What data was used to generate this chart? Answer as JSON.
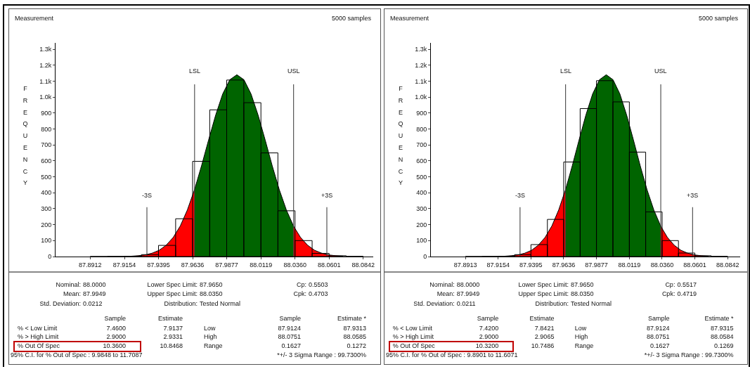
{
  "chart_data": [
    {
      "type": "histogram",
      "title": "Measurement",
      "ylabel": "FREQUENCY",
      "bins": [
        87.8912,
        87.9033,
        87.9154,
        87.9274,
        87.9395,
        87.9516,
        87.9636,
        87.9757,
        87.9877,
        87.9998,
        88.0119,
        88.0239,
        88.036,
        88.0481,
        88.0601,
        88.0722,
        88.0842
      ],
      "values": [
        0,
        1,
        2,
        12,
        70,
        237,
        597,
        920,
        1107,
        965,
        650,
        287,
        100,
        20,
        5,
        1
      ],
      "color": "#000000",
      "series": [
        {
          "type": "area",
          "color": "#ff0000",
          "x": [
            87.9199,
            87.9249,
            87.9299,
            87.9349,
            87.9399,
            87.9449,
            87.9499,
            87.9549,
            87.9599,
            87.965
          ],
          "values": [
            2,
            5,
            10,
            21,
            39,
            71,
            120,
            192,
            292,
            421
          ]
        },
        {
          "type": "area",
          "color": "#006400",
          "x": [
            87.965,
            87.9699,
            87.9749,
            87.9799,
            87.9849,
            87.9899,
            87.9949,
            87.9999,
            88.0049,
            88.0099,
            88.0149,
            88.0199,
            88.0249,
            88.0299,
            88.035
          ],
          "values": [
            421,
            569,
            731,
            887,
            1020,
            1109,
            1140,
            1109,
            1020,
            887,
            731,
            569,
            419,
            292,
            190
          ]
        },
        {
          "type": "area",
          "color": "#ff0000",
          "x": [
            88.035,
            88.0399,
            88.0449,
            88.0499,
            88.0549,
            88.0599,
            88.0649,
            88.0699
          ],
          "values": [
            190,
            120,
            71,
            39,
            21,
            10,
            5,
            2
          ]
        }
      ],
      "xlim": [
        87.8667,
        88.0913
      ],
      "xticks": [
        87.8912,
        87.9154,
        87.9395,
        87.9636,
        87.9877,
        88.0119,
        {
          "value": 88.036,
          "label": "88.0360"
        },
        88.0601,
        88.0842
      ],
      "ylim": [
        0,
        1340
      ],
      "yticks": [
        0,
        100,
        200,
        300,
        400,
        500,
        600,
        700,
        800,
        900,
        {
          "value": 1000,
          "label": "1.0k"
        },
        {
          "value": 1100,
          "label": "1.1k"
        },
        {
          "value": 1200,
          "label": "1.2k"
        },
        {
          "value": 1300,
          "label": "1.3k"
        }
      ],
      "ref_lines": [
        {
          "axis": "x",
          "value": 87.965,
          "label": "LSL"
        },
        {
          "axis": "x",
          "value": 88.035,
          "label": "USL"
        },
        {
          "axis": "x",
          "value": 87.9313,
          "label": "-3S"
        },
        {
          "axis": "x",
          "value": 88.0585,
          "label": "+3S"
        }
      ],
      "annotations": [
        "5000 samples",
        "Nominal: 88.0000",
        "Mean: 87.9949",
        "Std. Deviation: 0.0212",
        "Lower Spec Limit: 87.9650",
        "Upper Spec Limit: 88.0350",
        "Distribution: Tested Normal",
        "Cp: 0.5503",
        "Cpk: 0.4703",
        "Sample",
        "Estimate",
        "Sample",
        "Estimate *",
        "% < Low Limit",
        "7.4600",
        "7.9137",
        "Low",
        "87.9124",
        "87.9313",
        "% > High Limit",
        "2.9000",
        "2.9331",
        "High",
        "88.0751",
        "88.0585",
        "% Out Of Spec",
        "10.3600",
        "10.8468",
        "Range",
        "0.1627",
        "0.1272",
        "95% C.I. for % Out of Spec :  9.9848 to 11.7087",
        "*+/- 3 Sigma Range : 99.7300%"
      ]
    },
    {
      "type": "histogram",
      "title": "Measurement",
      "ylabel": "FREQUENCY",
      "bins": [
        87.8913,
        87.9034,
        87.9154,
        87.9275,
        87.9395,
        87.9516,
        87.9636,
        87.9757,
        87.9877,
        87.9998,
        88.0119,
        88.0239,
        88.036,
        88.048,
        88.0601,
        88.0721,
        88.0842
      ],
      "values": [
        0,
        1,
        2,
        12,
        75,
        233,
        593,
        928,
        1103,
        970,
        655,
        280,
        100,
        22,
        5,
        1
      ],
      "color": "#000000",
      "series": [
        {
          "type": "area",
          "color": "#ff0000",
          "x": [
            87.9199,
            87.9249,
            87.9299,
            87.9349,
            87.9399,
            87.9449,
            87.9499,
            87.9549,
            87.9599,
            87.965
          ],
          "values": [
            2,
            5,
            10,
            21,
            39,
            71,
            120,
            192,
            292,
            421
          ]
        },
        {
          "type": "area",
          "color": "#006400",
          "x": [
            87.965,
            87.9699,
            87.9749,
            87.9799,
            87.9849,
            87.9899,
            87.9949,
            87.9999,
            88.0049,
            88.0099,
            88.0149,
            88.0199,
            88.0249,
            88.0299,
            88.035
          ],
          "values": [
            421,
            569,
            731,
            887,
            1020,
            1109,
            1140,
            1109,
            1020,
            887,
            731,
            569,
            419,
            292,
            190
          ]
        },
        {
          "type": "area",
          "color": "#ff0000",
          "x": [
            88.035,
            88.0399,
            88.0449,
            88.0499,
            88.0549,
            88.0599,
            88.0649,
            88.0699
          ],
          "values": [
            190,
            120,
            71,
            39,
            21,
            10,
            5,
            2
          ]
        }
      ],
      "xlim": [
        87.8659,
        88.0934
      ],
      "xticks": [
        87.8913,
        87.9154,
        87.9395,
        87.9636,
        87.9877,
        88.0119,
        {
          "value": 88.036,
          "label": "88.0360"
        },
        88.0601,
        88.0842
      ],
      "ylim": [
        0,
        1340
      ],
      "yticks": [
        0,
        100,
        200,
        300,
        400,
        500,
        600,
        700,
        800,
        900,
        {
          "value": 1000,
          "label": "1.0k"
        },
        {
          "value": 1100,
          "label": "1.1k"
        },
        {
          "value": 1200,
          "label": "1.2k"
        },
        {
          "value": 1300,
          "label": "1.3k"
        }
      ],
      "ref_lines": [
        {
          "axis": "x",
          "value": 87.965,
          "label": "LSL"
        },
        {
          "axis": "x",
          "value": 88.035,
          "label": "USL"
        },
        {
          "axis": "x",
          "value": 87.9315,
          "label": "-3S"
        },
        {
          "axis": "x",
          "value": 88.0584,
          "label": "+3S"
        }
      ],
      "annotations": [
        "5000 samples",
        "Nominal: 88.0000",
        "Mean: 87.9949",
        "Std. Deviation: 0.0211",
        "Lower Spec Limit: 87.9650",
        "Upper Spec Limit: 88.0350",
        "Distribution: Tested Normal",
        "Cp: 0.5517",
        "Cpk: 0.4719",
        "Sample",
        "Estimate",
        "Sample",
        "Estimate *",
        "% < Low Limit",
        "7.4200",
        "7.8421",
        "Low",
        "87.9124",
        "87.9315",
        "% > High Limit",
        "2.9000",
        "2.9065",
        "High",
        "88.0751",
        "88.0584",
        "% Out Of Spec",
        "10.3200",
        "10.7486",
        "Range",
        "0.1627",
        "0.1269",
        "95% C.I. for % Out of Spec :  9.8901 to 11.6071",
        "*+/- 3 Sigma Range : 99.7300%"
      ]
    }
  ]
}
